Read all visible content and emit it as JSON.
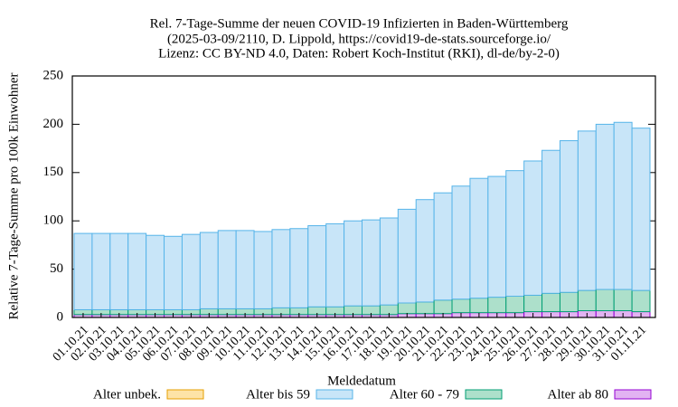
{
  "chart_data": {
    "type": "stacked_bar",
    "title": [
      "Rel. 7-Tage-Summe der neuen COVID-19 Infizierten in Baden-Württemberg",
      "(2025-03-09/2110, D. Lippold, https://covid19-de-stats.sourceforge.io/",
      "Lizenz: CC BY-ND 4.0, Daten: Robert Koch-Institut (RKI), dl-de/by-2-0)"
    ],
    "x_label": "Meldedatum",
    "y_label": "Relative 7-Tage-Summe pro 100k Einwohner",
    "categories": [
      "01.10.21",
      "02.10.21",
      "03.10.21",
      "04.10.21",
      "05.10.21",
      "06.10.21",
      "07.10.21",
      "08.10.21",
      "09.10.21",
      "10.10.21",
      "11.10.21",
      "12.10.21",
      "13.10.21",
      "14.10.21",
      "15.10.21",
      "16.10.21",
      "17.10.21",
      "18.10.21",
      "19.10.21",
      "20.10.21",
      "21.10.21",
      "22.10.21",
      "23.10.21",
      "24.10.21",
      "25.10.21",
      "26.10.21",
      "27.10.21",
      "28.10.21",
      "29.10.21",
      "30.10.21",
      "31.10.21",
      "01.11.21"
    ],
    "series": [
      {
        "name": "Alter unbek.",
        "color": "#fde3a7",
        "stroke": "#e69f00",
        "values": [
          0,
          0,
          0,
          0,
          0,
          0,
          0,
          0,
          0,
          0,
          0,
          0,
          0,
          0,
          0,
          0,
          0,
          0,
          0,
          0,
          0,
          0,
          0,
          0,
          0,
          0,
          0,
          0,
          0,
          0,
          0,
          0
        ]
      },
      {
        "name": "Alter bis 59",
        "color": "#c8e5f8",
        "stroke": "#56b4e9",
        "values": [
          79,
          79,
          79,
          79,
          77,
          76,
          78,
          79,
          81,
          81,
          80,
          81,
          82,
          84,
          86,
          88,
          89,
          90,
          97,
          106,
          111,
          117,
          124,
          125,
          130,
          139,
          148,
          157,
          165,
          171,
          173,
          168
        ]
      },
      {
        "name": "Alter 60 - 79",
        "color": "#ade0cb",
        "stroke": "#009e73",
        "values": [
          5,
          5,
          5,
          5,
          5,
          5,
          5,
          6,
          6,
          6,
          6,
          7,
          7,
          8,
          8,
          9,
          9,
          10,
          11,
          12,
          14,
          14,
          15,
          16,
          17,
          17,
          19,
          20,
          21,
          22,
          22,
          22
        ]
      },
      {
        "name": "Alter ab 80",
        "color": "#e2b3f2",
        "stroke": "#9400d3",
        "values": [
          3,
          3,
          3,
          3,
          3,
          3,
          3,
          3,
          3,
          3,
          3,
          3,
          3,
          3,
          3,
          3,
          3,
          3,
          4,
          4,
          4,
          5,
          5,
          5,
          5,
          6,
          6,
          6,
          7,
          7,
          7,
          6
        ]
      }
    ],
    "ylim": [
      0,
      250
    ],
    "yticks": [
      0,
      50,
      100,
      150,
      200,
      250
    ]
  }
}
